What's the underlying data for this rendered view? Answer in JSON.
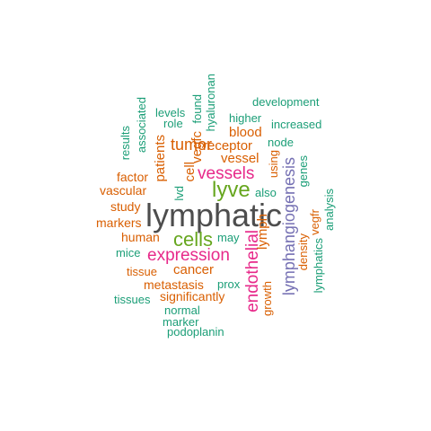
{
  "palette": {
    "green": "#1b9e77",
    "orange": "#d95f02",
    "purple": "#7570b3",
    "magenta": "#e7298a",
    "lime": "#66a61e",
    "gray": "#4d4d4d"
  },
  "words": {
    "lymphatic": "lymphatic",
    "lyve": "lyve",
    "cells": "cells",
    "expression": "expression",
    "vessels": "vessels",
    "endothelial": "endothelial",
    "lymphangiogenesis": "lymphangiogenesis",
    "tumor": "tumor",
    "vessel": "vessel",
    "receptor": "receptor",
    "cancer": "cancer",
    "metastasis": "metastasis",
    "significantly": "significantly",
    "patients": "patients",
    "vegfc": "vegfc",
    "cell": "cell",
    "blood": "blood",
    "lymph": "lymph",
    "human": "human",
    "study": "study",
    "markers": "markers",
    "vascular": "vascular",
    "factor": "factor",
    "tissue": "tissue",
    "tissues": "tissues",
    "mice": "mice",
    "prox": "prox",
    "normal": "normal",
    "marker": "marker",
    "podoplanin": "podoplanin",
    "may": "may",
    "also": "also",
    "node": "node",
    "higher": "higher",
    "increased": "increased",
    "development": "development",
    "levels": "levels",
    "role": "role",
    "found": "found",
    "hyaluronan": "hyaluronan",
    "results": "results",
    "associated": "associated",
    "lvd": "lvd",
    "using": "using",
    "growth": "growth",
    "density": "density",
    "vegfr": "vegfr",
    "genes": "genes",
    "lymphatics": "lymphatics",
    "analysis": "analysis"
  }
}
